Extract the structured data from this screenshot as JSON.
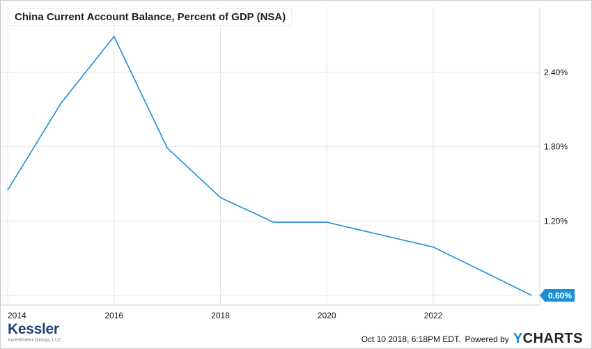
{
  "chart_data": {
    "type": "line",
    "title": "China Current Account Balance, Percent of GDP (NSA)",
    "xlabel": "",
    "ylabel": "",
    "x_tick_labels": [
      "2014",
      "2016",
      "2018",
      "2020",
      "2022"
    ],
    "y_tick_labels": [
      "0.60%",
      "1.20%",
      "1.80%",
      "2.40%"
    ],
    "y_ticks": [
      0.6,
      1.2,
      1.8,
      2.4
    ],
    "x_ticks": [
      2014,
      2016,
      2018,
      2020,
      2022
    ],
    "xlim": [
      2014,
      2023.85
    ],
    "ylim": [
      0.5,
      2.8
    ],
    "grid": true,
    "series": [
      {
        "color": "#1a8fd6",
        "x": [
          2014,
          2015,
          2016,
          2017,
          2018,
          2019,
          2020,
          2021,
          2022,
          2023,
          2023.85
        ],
        "y": [
          1.45,
          2.15,
          2.69,
          1.79,
          1.39,
          1.19,
          1.19,
          1.09,
          0.99,
          0.78,
          0.6
        ]
      }
    ],
    "last_value_label": "0.60%"
  },
  "footer": {
    "timestamp": "Oct 10 2018, 6:18PM EDT.",
    "powered_by": "Powered by",
    "ycharts_y": "Y",
    "ycharts_rest": "CHARTS"
  },
  "brand": {
    "name": "Kessler",
    "sub": "Investment Group, LLC"
  },
  "colors": {
    "series": "#1a8fd6",
    "grid": "#e6e6e6",
    "brand": "#1f3f7a"
  }
}
